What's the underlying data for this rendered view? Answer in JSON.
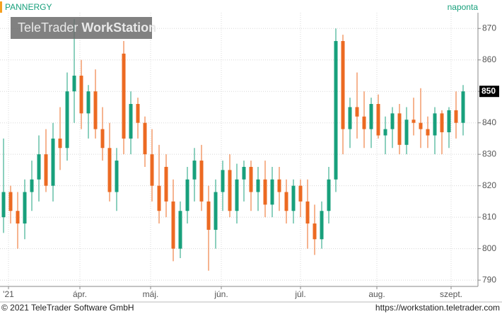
{
  "chart_data": {
    "type": "candlestick",
    "title": "PANNERGY",
    "subtitle": "naponta",
    "watermark": [
      "TeleTrader",
      "WorkStation"
    ],
    "up_color": "#18a07c",
    "down_color": "#ec6a22",
    "grid": true,
    "x": [
      0,
      1,
      2,
      3,
      4,
      5,
      6,
      7,
      8,
      9,
      10,
      11,
      12,
      13,
      14,
      15,
      16,
      17,
      18,
      19,
      20,
      21,
      22,
      23,
      24,
      25,
      26,
      27,
      28,
      29,
      30,
      31,
      32,
      33,
      34,
      35,
      36,
      37,
      38,
      39,
      40,
      41,
      42,
      43,
      44,
      45,
      46,
      47,
      48,
      49,
      50,
      51,
      52,
      53,
      54,
      55,
      56,
      57,
      58,
      59,
      60,
      61,
      62,
      63,
      64,
      65
    ],
    "open": [
      810,
      818,
      812,
      808,
      818,
      822,
      830,
      820,
      835,
      832,
      850,
      855,
      843,
      850,
      838,
      832,
      818,
      862,
      835,
      846,
      840,
      830,
      820,
      826,
      815,
      800,
      812,
      822,
      828,
      815,
      806,
      818,
      825,
      812,
      822,
      826,
      818,
      822,
      814,
      822,
      818,
      812,
      820,
      815,
      808,
      803,
      812,
      822,
      866,
      838,
      845,
      842,
      838,
      846,
      836,
      838,
      843,
      833,
      841,
      840,
      838,
      836,
      843,
      837,
      844,
      840
    ],
    "high": [
      835,
      820,
      818,
      822,
      828,
      836,
      838,
      840,
      845,
      856,
      873,
      860,
      852,
      857,
      845,
      840,
      832,
      866,
      850,
      848,
      842,
      838,
      833,
      830,
      822,
      815,
      826,
      832,
      833,
      820,
      822,
      828,
      830,
      827,
      828,
      828,
      826,
      828,
      826,
      826,
      822,
      822,
      822,
      822,
      814,
      815,
      826,
      870,
      868,
      848,
      856,
      850,
      848,
      849,
      842,
      845,
      846,
      845,
      848,
      851,
      842,
      845,
      844,
      845,
      850,
      852
    ],
    "low": [
      805,
      808,
      800,
      803,
      812,
      815,
      818,
      815,
      825,
      828,
      840,
      838,
      835,
      835,
      828,
      815,
      812,
      830,
      830,
      835,
      826,
      815,
      808,
      810,
      796,
      797,
      808,
      815,
      812,
      793,
      800,
      812,
      810,
      808,
      815,
      812,
      812,
      810,
      810,
      812,
      808,
      808,
      810,
      800,
      798,
      800,
      808,
      818,
      830,
      832,
      835,
      832,
      832,
      835,
      830,
      832,
      830,
      830,
      836,
      832,
      832,
      830,
      830,
      832,
      835,
      836
    ],
    "close": [
      818,
      812,
      808,
      818,
      822,
      830,
      820,
      835,
      832,
      850,
      855,
      843,
      850,
      838,
      832,
      818,
      828,
      835,
      846,
      840,
      830,
      820,
      812,
      815,
      800,
      812,
      822,
      828,
      815,
      806,
      818,
      825,
      812,
      822,
      826,
      818,
      822,
      814,
      822,
      818,
      812,
      820,
      815,
      808,
      803,
      812,
      822,
      866,
      838,
      845,
      842,
      838,
      846,
      836,
      838,
      843,
      833,
      841,
      840,
      838,
      836,
      843,
      837,
      844,
      840,
      850
    ],
    "xlim": [
      -0.5,
      67.1
    ],
    "xticks": [
      {
        "value": 0.7,
        "label": "'21"
      },
      {
        "value": 10.8,
        "label": "ápr."
      },
      {
        "value": 20.8,
        "label": "máj."
      },
      {
        "value": 30.8,
        "label": "jún."
      },
      {
        "value": 42,
        "label": "júl."
      },
      {
        "value": 52.8,
        "label": "aug."
      },
      {
        "value": 63.3,
        "label": "szept."
      }
    ],
    "ylim": [
      788,
      875
    ],
    "yticks": [
      790,
      800,
      810,
      820,
      830,
      840,
      850,
      860,
      870
    ]
  },
  "footer": {
    "copyright": "© 2021 TeleTrader Software GmbH",
    "url": "https://workstation.teletrader.com"
  }
}
